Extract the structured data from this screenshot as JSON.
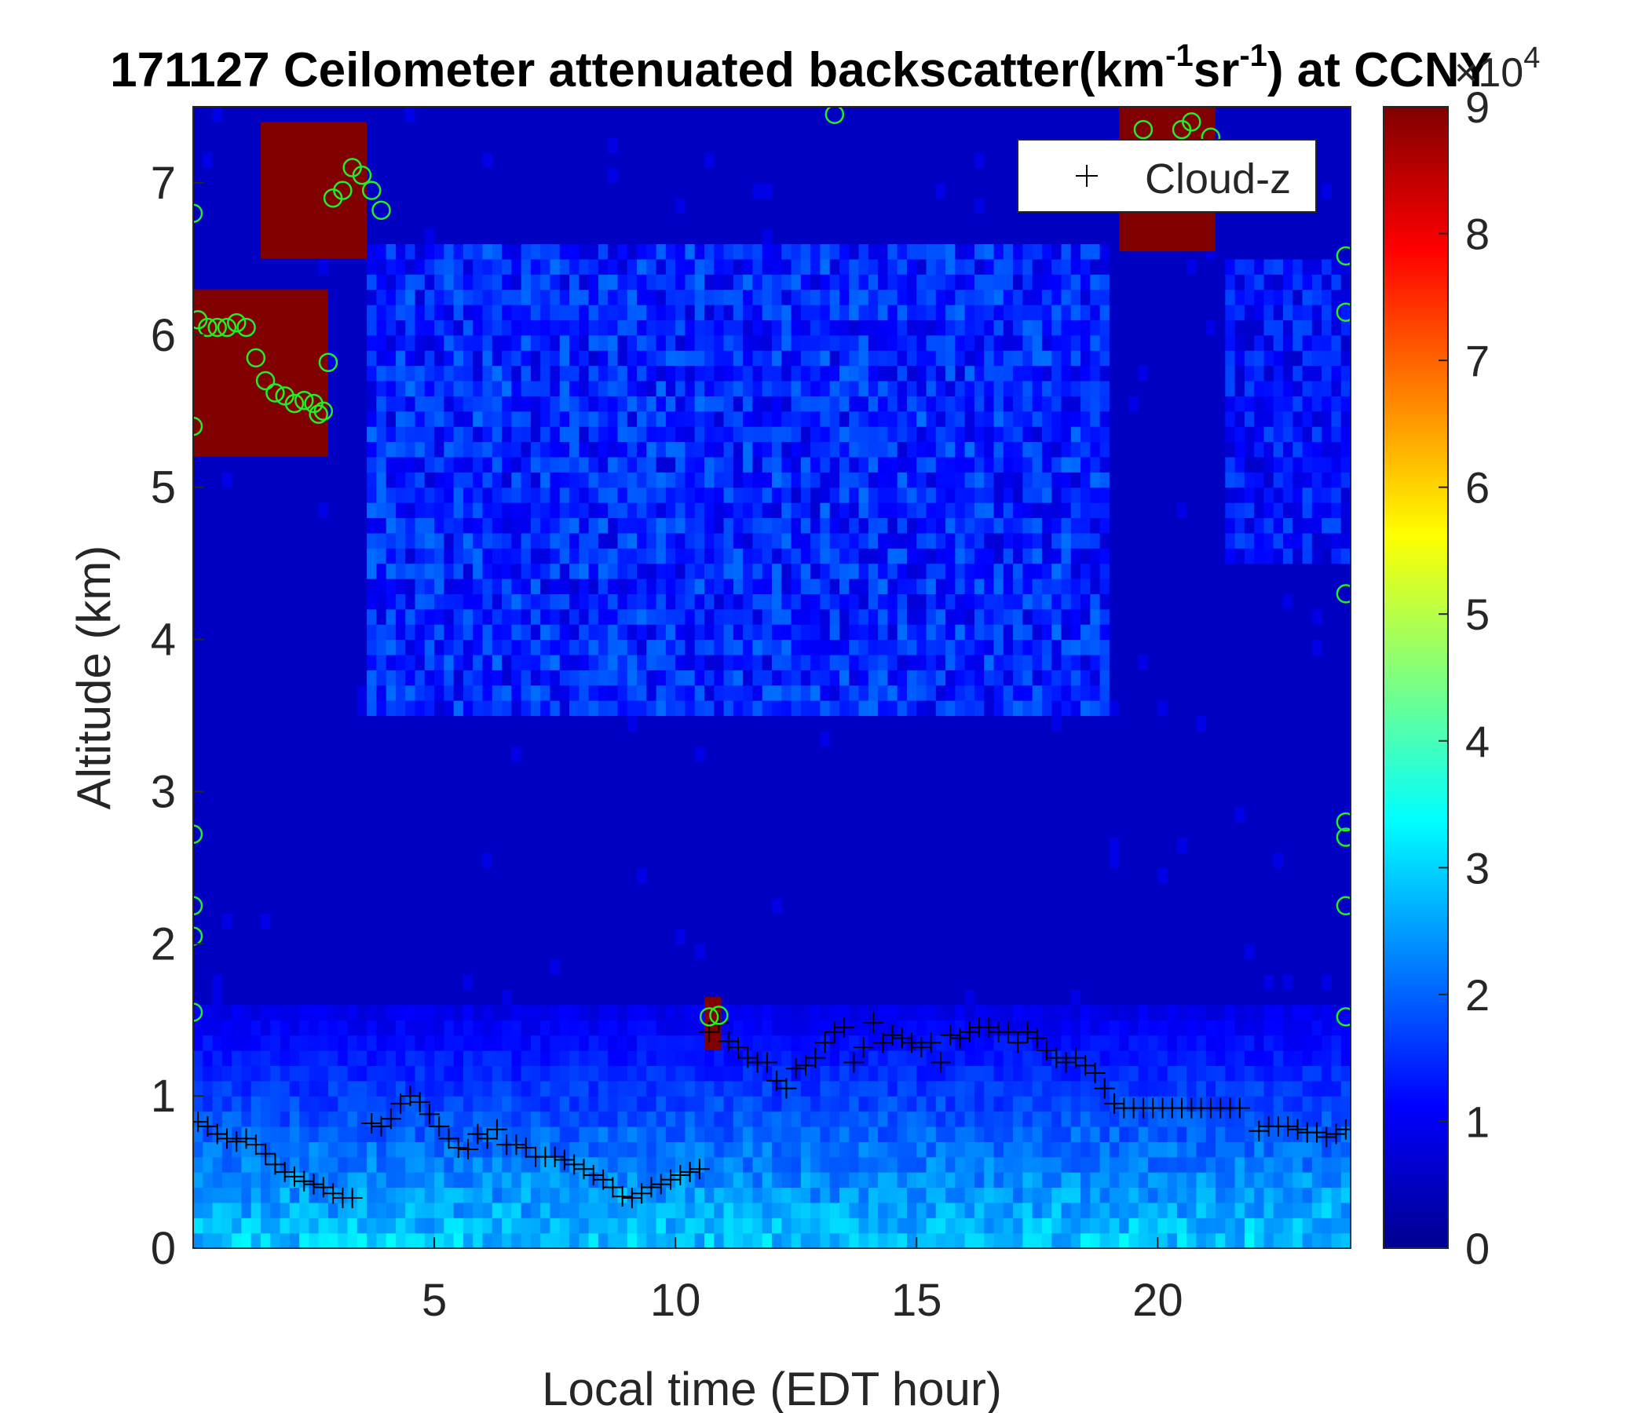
{
  "chart_data": {
    "type": "heatmap",
    "title": "171127 Ceilometer attenuated backscatter(km",
    "title_sup1": "-1",
    "title_mid": "sr",
    "title_sup2": "-1",
    "title_tail": ") at CCNY",
    "xlabel": "Local time (EDT hour)",
    "ylabel": "Altitude (km)",
    "xlim": [
      0,
      24
    ],
    "ylim": [
      0,
      7.5
    ],
    "xticks": [
      5,
      10,
      15,
      20
    ],
    "xtick_labels": [
      "5",
      "10",
      "15",
      "20"
    ],
    "yticks": [
      0,
      1,
      2,
      3,
      4,
      5,
      6,
      7
    ],
    "ytick_labels": [
      "0",
      "1",
      "2",
      "3",
      "4",
      "5",
      "6",
      "7"
    ],
    "colorbar": {
      "colormap": "jet",
      "range": [
        0,
        90000
      ],
      "ticks": [
        0,
        1,
        2,
        3,
        4,
        5,
        6,
        7,
        8,
        9
      ],
      "tick_labels": [
        "0",
        "1",
        "2",
        "3",
        "4",
        "5",
        "6",
        "7",
        "8",
        "9"
      ],
      "exponent_base": "×10",
      "exponent": "4"
    },
    "legend": {
      "entries": [
        "Cloud-z"
      ],
      "marker": "+",
      "location": "top-right"
    },
    "series": [
      {
        "name": "Cloud-z",
        "marker": "+",
        "color": "#000000",
        "x": [
          0.1,
          0.3,
          0.5,
          0.7,
          0.9,
          1.1,
          1.3,
          1.5,
          1.7,
          1.9,
          2.1,
          2.3,
          2.5,
          2.7,
          2.9,
          3.1,
          3.3,
          3.7,
          3.9,
          4.1,
          4.3,
          4.5,
          4.7,
          4.9,
          5.1,
          5.3,
          5.5,
          5.7,
          5.9,
          6.1,
          6.3,
          6.5,
          6.7,
          6.9,
          7.1,
          7.3,
          7.5,
          7.7,
          7.9,
          8.1,
          8.3,
          8.5,
          8.7,
          8.9,
          9.1,
          9.3,
          9.5,
          9.7,
          9.9,
          10.1,
          10.3,
          10.5,
          10.7,
          10.9,
          11.1,
          11.3,
          11.5,
          11.7,
          11.9,
          12.1,
          12.3,
          12.5,
          12.7,
          12.9,
          13.1,
          13.3,
          13.5,
          13.7,
          13.9,
          14.1,
          14.3,
          14.5,
          14.7,
          14.9,
          15.1,
          15.3,
          15.5,
          15.7,
          15.9,
          16.1,
          16.3,
          16.5,
          16.7,
          16.9,
          17.1,
          17.3,
          17.5,
          17.7,
          17.9,
          18.1,
          18.3,
          18.5,
          18.7,
          18.9,
          19.1,
          19.3,
          19.5,
          19.7,
          19.9,
          20.1,
          20.3,
          20.5,
          20.7,
          20.9,
          21.1,
          21.3,
          21.5,
          21.7,
          22.1,
          22.3,
          22.5,
          22.7,
          22.9,
          23.1,
          23.3,
          23.5,
          23.7,
          23.9
        ],
        "y": [
          0.83,
          0.8,
          0.75,
          0.72,
          0.7,
          0.72,
          0.68,
          0.62,
          0.55,
          0.5,
          0.47,
          0.44,
          0.42,
          0.4,
          0.36,
          0.33,
          0.33,
          0.82,
          0.8,
          0.85,
          0.95,
          1.0,
          0.96,
          0.88,
          0.8,
          0.72,
          0.66,
          0.65,
          0.75,
          0.72,
          0.78,
          0.68,
          0.68,
          0.66,
          0.6,
          0.6,
          0.6,
          0.58,
          0.55,
          0.52,
          0.48,
          0.45,
          0.4,
          0.34,
          0.33,
          0.36,
          0.4,
          0.42,
          0.45,
          0.48,
          0.5,
          0.52,
          1.42,
          1.48,
          1.36,
          1.32,
          1.25,
          1.22,
          1.22,
          1.1,
          1.05,
          1.18,
          1.2,
          1.25,
          1.35,
          1.42,
          1.45,
          1.22,
          1.32,
          1.48,
          1.35,
          1.4,
          1.38,
          1.35,
          1.32,
          1.35,
          1.22,
          1.4,
          1.38,
          1.42,
          1.45,
          1.45,
          1.42,
          1.42,
          1.35,
          1.42,
          1.38,
          1.3,
          1.25,
          1.22,
          1.25,
          1.2,
          1.15,
          1.05,
          0.95,
          0.92,
          0.92,
          0.92,
          0.92,
          0.92,
          0.92,
          0.92,
          0.92,
          0.92,
          0.92,
          0.92,
          0.92,
          0.92,
          0.77,
          0.8,
          0.8,
          0.8,
          0.78,
          0.76,
          0.76,
          0.73,
          0.75,
          0.78
        ]
      },
      {
        "name": "",
        "marker": "o",
        "color": "#22ee22",
        "x": [
          0.0,
          0.0,
          0.1,
          0.3,
          0.5,
          0.7,
          0.9,
          1.1,
          1.3,
          1.5,
          1.7,
          1.9,
          2.1,
          2.3,
          2.5,
          2.7,
          2.6,
          2.9,
          3.1,
          3.3,
          3.5,
          3.7,
          3.9,
          2.8,
          0.0,
          0.0,
          0.0,
          0.0,
          10.7,
          10.9,
          13.3,
          19.7,
          20.5,
          20.7,
          21.1,
          23.9,
          23.9,
          23.9,
          23.9,
          23.9,
          23.9,
          23.9
        ],
        "y": [
          6.8,
          5.4,
          6.1,
          6.05,
          6.05,
          6.05,
          6.08,
          6.05,
          5.85,
          5.7,
          5.62,
          5.6,
          5.55,
          5.57,
          5.55,
          5.5,
          5.48,
          6.9,
          6.95,
          7.1,
          7.05,
          6.95,
          6.82,
          5.82,
          2.72,
          2.25,
          2.05,
          1.55,
          1.52,
          1.53,
          7.45,
          7.35,
          7.35,
          7.4,
          7.3,
          6.15,
          4.3,
          2.8,
          2.7,
          2.25,
          1.52,
          6.52
        ]
      }
    ],
    "features": [
      {
        "label": "cloud",
        "x_range": [
          0,
          2.8
        ],
        "y_range": [
          5.2,
          6.3
        ],
        "level": 90000
      },
      {
        "label": "cloud",
        "x_range": [
          1.4,
          3.6
        ],
        "y_range": [
          6.5,
          7.4
        ],
        "level": 90000
      },
      {
        "label": "cloud",
        "x_range": [
          10.6,
          10.95
        ],
        "y_range": [
          1.3,
          1.65
        ],
        "level": 90000
      },
      {
        "label": "cloud",
        "x_range": [
          19.2,
          21.2
        ],
        "y_range": [
          6.55,
          7.5
        ],
        "level": 90000
      },
      {
        "label": "aerosol layer",
        "x_range": [
          3.6,
          19.0
        ],
        "y_range": [
          3.5,
          6.6
        ],
        "level": 15000
      },
      {
        "label": "aerosol layer",
        "x_range": [
          21.3,
          24
        ],
        "y_range": [
          4.5,
          6.5
        ],
        "level": 13000
      },
      {
        "label": "boundary layer",
        "x_range": [
          0,
          24
        ],
        "y_range": [
          0,
          1.6
        ],
        "level": 30000
      }
    ]
  }
}
